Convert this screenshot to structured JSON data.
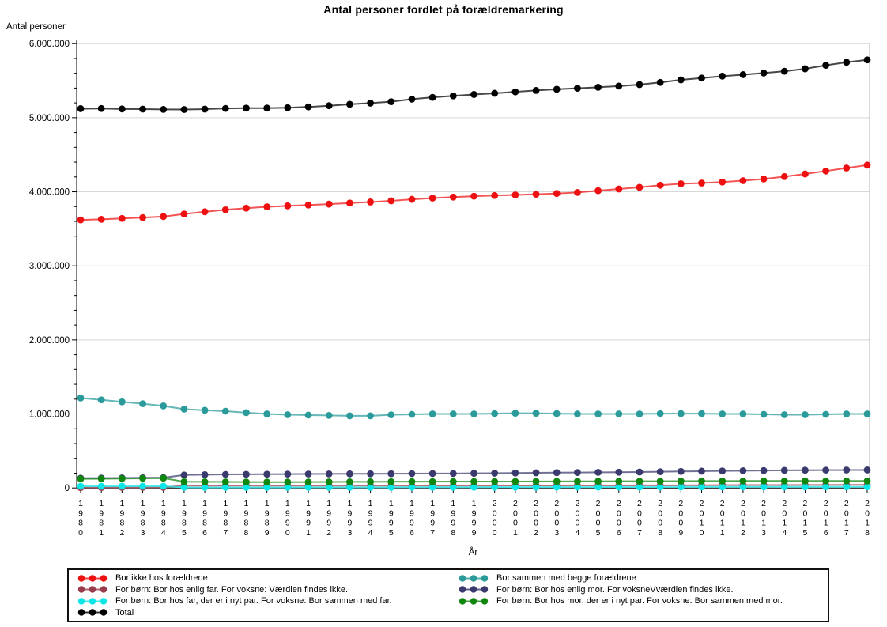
{
  "chart_data": {
    "type": "line",
    "title": "Antal personer fordlet på forældremarkering",
    "xlabel": "År",
    "ylabel": "Antal personer",
    "ylim": [
      0,
      6000000
    ],
    "y_major_tick_interval": 1000000,
    "y_minor_tick_interval": 200000,
    "grid": "horizontal gridlines at major y ticks, light gray",
    "legend_position": "boxed legend below plot, two columns",
    "x": [
      1980,
      1981,
      1982,
      1983,
      1984,
      1985,
      1986,
      1987,
      1988,
      1989,
      1990,
      1991,
      1992,
      1993,
      1994,
      1995,
      1996,
      1997,
      1998,
      1999,
      2000,
      2001,
      2002,
      2003,
      2004,
      2005,
      2006,
      2007,
      2008,
      2009,
      2010,
      2011,
      2012,
      2013,
      2014,
      2015,
      2016,
      2017,
      2018
    ],
    "series": [
      {
        "name": "Bor ikke hos forældrene",
        "color": "#ee1010",
        "values": [
          3620000,
          3628000,
          3640000,
          3652000,
          3666000,
          3700000,
          3730000,
          3757000,
          3779000,
          3797000,
          3810000,
          3821000,
          3833000,
          3848000,
          3862000,
          3878000,
          3898000,
          3915000,
          3928000,
          3940000,
          3950000,
          3958000,
          3967000,
          3977000,
          3991000,
          4015000,
          4038000,
          4060000,
          4088000,
          4108000,
          4118000,
          4131000,
          4150000,
          4173000,
          4205000,
          4240000,
          4280000,
          4321000,
          4360000
        ]
      },
      {
        "name": "Bor sammen med begge forældrene",
        "color": "#2a9a9a",
        "values": [
          1215000,
          1190000,
          1163000,
          1138000,
          1108000,
          1065000,
          1050000,
          1038000,
          1018000,
          1000000,
          990000,
          985000,
          980000,
          975000,
          975000,
          988000,
          995000,
          1000000,
          1000000,
          1000000,
          1005000,
          1010000,
          1010000,
          1005000,
          1000000,
          1000000,
          1000000,
          1000000,
          1005000,
          1005000,
          1005000,
          1000000,
          1000000,
          995000,
          990000,
          990000,
          995000,
          1000000,
          1000000
        ]
      },
      {
        "name": "For børn: Bor hos enlig far. For voksne: Værdien findes ikke.",
        "color": "#993d4d",
        "values": [
          5000,
          6000,
          7000,
          8000,
          9000,
          31000,
          31000,
          31000,
          31000,
          31000,
          31000,
          31000,
          31000,
          31000,
          31000,
          31000,
          31000,
          32000,
          32000,
          32000,
          32000,
          33000,
          33000,
          33000,
          34000,
          34000,
          34000,
          35000,
          35000,
          36000,
          37000,
          38000,
          39000,
          40000,
          40000,
          41000,
          41000,
          42000,
          42000
        ]
      },
      {
        "name": "For børn: Bor hos enlig mor. For voksneVværdien findes ikke.",
        "color": "#3a3a6e",
        "values": [
          133000,
          134000,
          136000,
          138000,
          140000,
          175000,
          180000,
          183000,
          185000,
          186000,
          188000,
          189000,
          190000,
          191000,
          192000,
          193000,
          194000,
          195000,
          196000,
          198000,
          200000,
          202000,
          205000,
          207000,
          209000,
          211000,
          213000,
          216000,
          220000,
          224000,
          227000,
          230000,
          233000,
          236000,
          238000,
          240000,
          241000,
          242000,
          243000
        ]
      },
      {
        "name": "For børn: Bor hos far, der er i nyt par. For voksne: Bor sammen med far.",
        "color": "#0ce6e6",
        "values": [
          23000,
          23000,
          24000,
          24000,
          25000,
          8000,
          8000,
          8000,
          8000,
          8000,
          8000,
          9000,
          9000,
          9000,
          9000,
          9000,
          10000,
          10000,
          10000,
          10000,
          11000,
          11000,
          11000,
          12000,
          12000,
          12000,
          13000,
          13000,
          13000,
          14000,
          14000,
          14000,
          15000,
          15000,
          15000,
          15000,
          16000,
          16000,
          16000
        ]
      },
      {
        "name": "For børn: Bor hos mor, der er i nyt par. For voksne: Bor sammen med mor.",
        "color": "#0f870f",
        "values": [
          123000,
          125000,
          127000,
          130000,
          133000,
          85000,
          83000,
          82000,
          81000,
          80000,
          80000,
          81000,
          82000,
          83000,
          84000,
          85000,
          86000,
          86000,
          87000,
          87000,
          88000,
          88000,
          89000,
          89000,
          90000,
          90000,
          91000,
          91000,
          92000,
          93000,
          94000,
          94000,
          95000,
          95000,
          95000,
          95000,
          95000,
          95000,
          95000
        ]
      },
      {
        "name": "Total",
        "color": "#000000",
        "values": [
          5122000,
          5124000,
          5118000,
          5116000,
          5112000,
          5111000,
          5116000,
          5125000,
          5129000,
          5130000,
          5135000,
          5146000,
          5162000,
          5181000,
          5197000,
          5216000,
          5251000,
          5275000,
          5295000,
          5314000,
          5330000,
          5349000,
          5368000,
          5384000,
          5398000,
          5411000,
          5427000,
          5447000,
          5476000,
          5511000,
          5535000,
          5561000,
          5581000,
          5603000,
          5627000,
          5660000,
          5707000,
          5749000,
          5781000
        ]
      }
    ],
    "y_tick_labels": [
      "0",
      "1.000.000",
      "2.000.000",
      "3.000.000",
      "4.000.000",
      "5.000.000",
      "6.000.000"
    ]
  },
  "legend": {
    "columns": [
      [
        0,
        2,
        4,
        6
      ],
      [
        1,
        3,
        5
      ]
    ]
  },
  "colors": {
    "gridline": "#d8d8d8",
    "axis": "#000000",
    "right_border": "#b4b4b4",
    "background": "#ffffff"
  }
}
